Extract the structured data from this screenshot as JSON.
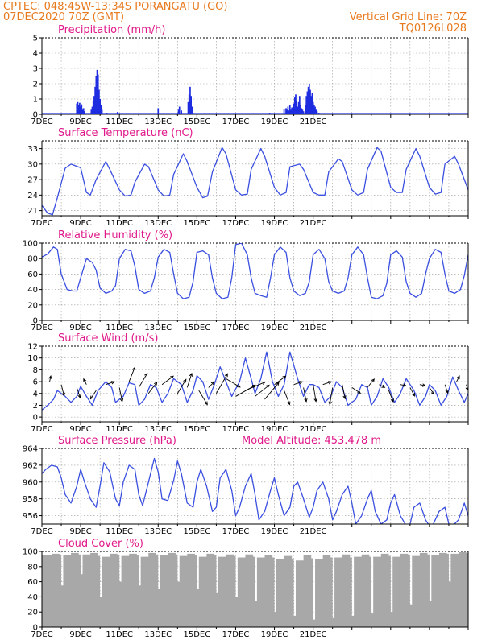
{
  "header": {
    "line1": "CPTEC:   048:45W-13:34S   PORANGATU (GO)",
    "line2": "07DEC2020 70Z (GMT)",
    "grid_note": "Vertical Grid Line: 70Z",
    "code": "TQ0126L028"
  },
  "colors": {
    "header": "#e87a1e",
    "title": "#e0198a",
    "line": "#3a4fe0",
    "bar": "#1f2de0",
    "cloud": "#a8a8a8",
    "grid": "#9a9a9a"
  },
  "x_tick_labels": [
    "7DEC",
    "9DEC",
    "11DEC",
    "13DEC",
    "15DEC",
    "17DEC",
    "19DEC",
    "21DEC"
  ],
  "chart_data": [
    {
      "type": "bar",
      "title": "Precipitation (mm/h)",
      "ylim": [
        0,
        5
      ],
      "yticks": [
        0,
        1,
        2,
        3,
        4,
        5
      ],
      "x": [
        1.8,
        1.85,
        1.9,
        1.95,
        2.0,
        2.05,
        2.1,
        2.15,
        2.2,
        2.55,
        2.6,
        2.65,
        2.7,
        2.75,
        2.8,
        2.85,
        2.9,
        2.95,
        3.0,
        3.05,
        3.1,
        3.35,
        3.9,
        6.0,
        7.05,
        7.1,
        7.2,
        7.55,
        7.6,
        7.65,
        7.7,
        7.75,
        11.75,
        12.5,
        12.6,
        12.65,
        12.7,
        12.75,
        12.8,
        12.85,
        12.9,
        12.95,
        13.0,
        13.05,
        13.1,
        13.15,
        13.2,
        13.25,
        13.3,
        13.35,
        13.4,
        13.45,
        13.5,
        13.6,
        13.65,
        13.7,
        13.75,
        13.8,
        13.85,
        13.9,
        13.95,
        14.0,
        14.05,
        14.1,
        14.15,
        14.2,
        14.3
      ],
      "values": [
        0.7,
        0.8,
        0.6,
        0.75,
        0.5,
        0.65,
        0.3,
        0.4,
        0.2,
        0.3,
        0.5,
        0.9,
        1.2,
        1.8,
        2.5,
        2.9,
        2.6,
        1.6,
        1.0,
        0.6,
        0.3,
        0.1,
        0.15,
        0.4,
        0.3,
        0.5,
        0.25,
        0.8,
        1.3,
        1.8,
        1.2,
        0.5,
        0.1,
        0.35,
        0.4,
        0.3,
        0.5,
        0.25,
        0.6,
        0.3,
        0.45,
        0.2,
        0.7,
        1.1,
        1.3,
        0.9,
        0.5,
        0.8,
        1.2,
        0.6,
        0.4,
        0.3,
        0.2,
        0.6,
        1.2,
        1.5,
        1.8,
        2.0,
        1.6,
        1.2,
        1.4,
        0.8,
        0.6,
        0.5,
        0.3,
        0.2,
        0.1
      ]
    },
    {
      "type": "line",
      "title": "Surface Temperature (nC)",
      "ylim": [
        20,
        34.5
      ],
      "yticks": [
        21,
        24,
        27,
        30,
        33
      ],
      "x": [
        0,
        0.3,
        0.55,
        0.8,
        1.2,
        1.5,
        2.0,
        2.3,
        2.5,
        2.8,
        3.3,
        3.5,
        4.0,
        4.3,
        4.6,
        4.8,
        5.3,
        5.5,
        6.0,
        6.3,
        6.6,
        6.8,
        7.3,
        7.5,
        8.0,
        8.3,
        8.55,
        8.8,
        9.3,
        9.5,
        10.0,
        10.3,
        10.6,
        10.8,
        11.3,
        11.5,
        12.0,
        12.3,
        12.6,
        12.8,
        13.3,
        13.5,
        14.0,
        14.3,
        14.6,
        14.8,
        15.3,
        15.5,
        16.0,
        16.3,
        16.6,
        16.8,
        17.3,
        17.5,
        18.0,
        18.3,
        18.6,
        18.8,
        19.3,
        19.5,
        20.0,
        20.3,
        20.6,
        20.8,
        21.3,
        21.5,
        22.0
      ],
      "values": [
        22.0,
        20.5,
        20.2,
        23.5,
        29.2,
        30.0,
        29.3,
        24.5,
        24.0,
        27.0,
        30.5,
        29.0,
        25.0,
        23.8,
        24.0,
        26.5,
        30.0,
        29.5,
        25.0,
        23.8,
        24.0,
        28.0,
        32.0,
        30.5,
        25.5,
        23.5,
        23.8,
        28.5,
        33.2,
        32.0,
        25.0,
        24.0,
        24.2,
        29.0,
        33.0,
        31.5,
        25.5,
        24.0,
        24.5,
        29.5,
        30.0,
        29.0,
        24.5,
        24.0,
        24.0,
        28.5,
        31.0,
        30.5,
        25.0,
        24.0,
        24.5,
        29.0,
        33.2,
        32.5,
        25.5,
        24.5,
        24.5,
        29.0,
        33.0,
        31.5,
        25.5,
        24.2,
        24.5,
        30.0,
        31.5,
        30.0,
        25.0
      ]
    },
    {
      "type": "line",
      "title": "Relative Humidity (%)",
      "ylim": [
        0,
        100
      ],
      "yticks": [
        0,
        20,
        40,
        60,
        80,
        100
      ],
      "x": [
        0,
        0.3,
        0.6,
        0.8,
        1.0,
        1.3,
        1.6,
        1.8,
        2.0,
        2.3,
        2.6,
        2.8,
        3.0,
        3.3,
        3.6,
        3.8,
        4.0,
        4.3,
        4.6,
        4.8,
        5.0,
        5.3,
        5.6,
        5.8,
        6.0,
        6.3,
        6.6,
        6.8,
        7.0,
        7.3,
        7.6,
        7.8,
        8.0,
        8.3,
        8.6,
        8.8,
        9.0,
        9.3,
        9.6,
        9.8,
        10.0,
        10.3,
        10.6,
        10.8,
        11.0,
        11.3,
        11.6,
        11.8,
        12.0,
        12.3,
        12.6,
        12.8,
        13.0,
        13.3,
        13.6,
        13.8,
        14.0,
        14.3,
        14.6,
        14.8,
        15.0,
        15.3,
        15.6,
        15.8,
        16.0,
        16.3,
        16.6,
        16.8,
        17.0,
        17.3,
        17.6,
        17.8,
        18.0,
        18.3,
        18.6,
        18.8,
        19.0,
        19.3,
        19.6,
        19.8,
        20.0,
        20.3,
        20.6,
        20.8,
        21.0,
        21.3,
        21.6,
        21.8,
        22.0
      ],
      "values": [
        82,
        86,
        95,
        92,
        60,
        40,
        38,
        38,
        55,
        80,
        75,
        65,
        42,
        35,
        38,
        45,
        80,
        92,
        90,
        70,
        40,
        35,
        38,
        55,
        82,
        92,
        88,
        60,
        35,
        28,
        30,
        50,
        88,
        90,
        85,
        55,
        35,
        28,
        30,
        55,
        98,
        100,
        85,
        55,
        35,
        32,
        30,
        55,
        85,
        95,
        88,
        55,
        38,
        32,
        35,
        50,
        85,
        92,
        80,
        50,
        38,
        35,
        38,
        55,
        85,
        95,
        85,
        55,
        30,
        28,
        32,
        48,
        85,
        90,
        82,
        50,
        35,
        30,
        35,
        60,
        80,
        92,
        88,
        60,
        38,
        35,
        40,
        58,
        85
      ]
    },
    {
      "type": "line",
      "title": "Surface Wind (m/s)",
      "ylim": [
        -0.8,
        12
      ],
      "yticks": [
        0,
        2,
        4,
        6,
        8,
        10,
        12
      ],
      "x": [
        0,
        0.3,
        0.6,
        0.8,
        1.2,
        1.5,
        1.8,
        2.0,
        2.3,
        2.6,
        2.9,
        3.3,
        3.6,
        3.8,
        4.2,
        4.5,
        4.8,
        5.0,
        5.3,
        5.6,
        5.9,
        6.2,
        6.5,
        6.8,
        7.2,
        7.5,
        7.8,
        8.0,
        8.3,
        8.6,
        8.9,
        9.2,
        9.5,
        9.8,
        10.2,
        10.5,
        10.8,
        11.0,
        11.3,
        11.6,
        11.9,
        12.2,
        12.5,
        12.8,
        13.2,
        13.5,
        13.8,
        14.0,
        14.3,
        14.6,
        14.9,
        15.2,
        15.5,
        15.8,
        16.2,
        16.5,
        16.8,
        17.0,
        17.3,
        17.6,
        17.9,
        18.2,
        18.5,
        18.8,
        19.2,
        19.5,
        19.8,
        20.0,
        20.3,
        20.6,
        20.9,
        21.2,
        21.5,
        21.8,
        22.0
      ],
      "values": [
        1.2,
        2.0,
        3.0,
        4.5,
        3.5,
        2.5,
        3.5,
        5.2,
        3.5,
        2.0,
        4.5,
        6.0,
        5.0,
        2.5,
        3.5,
        5.8,
        5.5,
        2.0,
        3.0,
        5.5,
        5.0,
        2.5,
        4.0,
        6.5,
        5.5,
        2.5,
        4.5,
        7.0,
        6.0,
        3.0,
        5.5,
        8.5,
        6.0,
        3.5,
        6.0,
        10.0,
        6.5,
        4.0,
        6.5,
        11.0,
        6.0,
        3.5,
        5.5,
        11.0,
        6.5,
        3.5,
        5.5,
        5.5,
        5.0,
        2.5,
        3.5,
        6.0,
        5.0,
        2.0,
        3.0,
        5.5,
        5.0,
        2.0,
        3.5,
        6.5,
        5.0,
        2.5,
        4.0,
        6.5,
        4.5,
        2.0,
        3.5,
        5.5,
        4.5,
        2.0,
        3.5,
        6.8,
        4.5,
        2.5,
        4.0
      ],
      "arrows": [
        {
          "x": 0.4,
          "y": 6.0,
          "u": 0.2,
          "v": 1.0
        },
        {
          "x": 1.0,
          "y": 5.5,
          "u": 0.5,
          "v": -2.0
        },
        {
          "x": 1.8,
          "y": 5.0,
          "u": 0.6,
          "v": -1.8
        },
        {
          "x": 2.3,
          "y": 5.5,
          "u": -0.5,
          "v": 1.0
        },
        {
          "x": 2.8,
          "y": 4.5,
          "u": -1.0,
          "v": -1.5
        },
        {
          "x": 3.3,
          "y": 5.5,
          "u": 1.5,
          "v": 0.5
        },
        {
          "x": 4.0,
          "y": 5.0,
          "u": 0.5,
          "v": -2.5
        },
        {
          "x": 4.5,
          "y": 6.0,
          "u": 1.0,
          "v": 2.5
        },
        {
          "x": 5.0,
          "y": 5.0,
          "u": 1.5,
          "v": 2.5
        },
        {
          "x": 5.5,
          "y": 4.0,
          "u": 1.5,
          "v": 2.0
        },
        {
          "x": 6.2,
          "y": 5.5,
          "u": 2.0,
          "v": 1.5
        },
        {
          "x": 7.0,
          "y": 4.0,
          "u": 1.5,
          "v": 2.5
        },
        {
          "x": 7.5,
          "y": 5.0,
          "u": 0.8,
          "v": 2.5
        },
        {
          "x": 8.1,
          "y": 4.5,
          "u": 1.5,
          "v": -2.5
        },
        {
          "x": 8.6,
          "y": 5.0,
          "u": 1.0,
          "v": 1.0
        },
        {
          "x": 9.0,
          "y": 4.0,
          "u": 2.0,
          "v": 3.5
        },
        {
          "x": 9.5,
          "y": 6.5,
          "u": 2.5,
          "v": -1.5
        },
        {
          "x": 10.0,
          "y": 3.5,
          "u": 3.5,
          "v": 2.0
        },
        {
          "x": 10.5,
          "y": 4.5,
          "u": 3.5,
          "v": 1.5
        },
        {
          "x": 11.0,
          "y": 3.5,
          "u": 2.5,
          "v": 2.0
        },
        {
          "x": 11.5,
          "y": 3.0,
          "u": 2.5,
          "v": 3.0
        },
        {
          "x": 12.0,
          "y": 5.5,
          "u": 2.0,
          "v": 1.5
        },
        {
          "x": 12.5,
          "y": 4.5,
          "u": 1.0,
          "v": -2.5
        },
        {
          "x": 13.0,
          "y": 5.5,
          "u": 1.5,
          "v": 0.5
        },
        {
          "x": 13.5,
          "y": 5.0,
          "u": 0.5,
          "v": -2.5
        },
        {
          "x": 14.0,
          "y": 5.5,
          "u": 0.5,
          "v": -3.0
        },
        {
          "x": 14.5,
          "y": 5.5,
          "u": 1.5,
          "v": 0.5
        },
        {
          "x": 15.0,
          "y": 5.0,
          "u": -0.5,
          "v": -3.0
        },
        {
          "x": 15.5,
          "y": 5.5,
          "u": 0.5,
          "v": -2.5
        },
        {
          "x": 16.0,
          "y": 5.0,
          "u": 1.5,
          "v": -1.0
        },
        {
          "x": 16.8,
          "y": 5.0,
          "u": 1.2,
          "v": 1.5
        },
        {
          "x": 17.4,
          "y": 5.5,
          "u": 1.0,
          "v": -0.5
        },
        {
          "x": 17.9,
          "y": 4.5,
          "u": 0.8,
          "v": -2.0
        },
        {
          "x": 18.5,
          "y": 5.5,
          "u": 1.0,
          "v": -0.2
        },
        {
          "x": 19.0,
          "y": 5.0,
          "u": 0.8,
          "v": -1.5
        },
        {
          "x": 19.5,
          "y": 5.5,
          "u": 1.0,
          "v": -0.2
        },
        {
          "x": 20.0,
          "y": 5.0,
          "u": 0.8,
          "v": -1.2
        },
        {
          "x": 20.8,
          "y": 5.5,
          "u": 0.5,
          "v": -1.5
        },
        {
          "x": 21.4,
          "y": 6.0,
          "u": 0.5,
          "v": 1.0
        },
        {
          "x": 21.9,
          "y": 5.5,
          "u": 0.3,
          "v": -1.0
        }
      ]
    },
    {
      "type": "line",
      "title": "Surface Pressure (hPa)",
      "annotation": "Model Altitude: 453.478 m",
      "ylim": [
        955,
        964
      ],
      "yticks": [
        956,
        958,
        960,
        962,
        964
      ],
      "x": [
        0,
        0.2,
        0.5,
        0.8,
        1.0,
        1.2,
        1.5,
        1.8,
        2.0,
        2.2,
        2.5,
        2.8,
        3.0,
        3.2,
        3.5,
        3.8,
        4.0,
        4.2,
        4.5,
        4.8,
        5.0,
        5.2,
        5.5,
        5.8,
        6.0,
        6.2,
        6.5,
        6.8,
        7.0,
        7.2,
        7.5,
        7.8,
        8.0,
        8.2,
        8.5,
        8.8,
        9.0,
        9.2,
        9.5,
        9.8,
        10.0,
        10.2,
        10.5,
        10.8,
        11.0,
        11.2,
        11.5,
        11.8,
        12.0,
        12.2,
        12.5,
        12.8,
        13.0,
        13.2,
        13.5,
        13.8,
        14.0,
        14.2,
        14.5,
        14.8,
        15.0,
        15.2,
        15.5,
        15.8,
        16.0,
        16.2,
        16.5,
        16.8,
        17.0,
        17.2,
        17.5,
        17.8,
        18.0,
        18.2,
        18.5,
        18.8,
        19.0,
        19.2,
        19.5,
        19.8,
        20.0,
        20.2,
        20.5,
        20.8,
        21.0,
        21.2,
        21.5,
        21.8,
        22.0
      ],
      "values": [
        961.0,
        961.5,
        962.0,
        961.8,
        960.5,
        958.5,
        957.5,
        959.5,
        961.5,
        960.0,
        958.0,
        957.0,
        959.5,
        962.3,
        961.2,
        958.0,
        957.2,
        960.0,
        962.0,
        961.5,
        958.5,
        957.2,
        960.0,
        962.8,
        961.2,
        958.0,
        957.8,
        960.2,
        962.5,
        961.0,
        957.5,
        957.0,
        960.0,
        961.5,
        959.5,
        956.5,
        957.0,
        960.5,
        961.5,
        959.0,
        956.0,
        957.0,
        959.5,
        961.0,
        958.5,
        955.5,
        956.5,
        959.0,
        960.5,
        958.5,
        956.0,
        957.0,
        959.5,
        960.0,
        958.0,
        955.8,
        957.0,
        959.0,
        960.0,
        958.0,
        955.5,
        956.5,
        958.5,
        959.5,
        957.5,
        955.0,
        956.0,
        958.0,
        959.0,
        956.5,
        955.0,
        955.5,
        957.5,
        958.5,
        956.0,
        954.8,
        955.0,
        957.0,
        957.5,
        955.5,
        954.8,
        955.0,
        956.5,
        957.0,
        955.0,
        954.8,
        955.5,
        957.5,
        956.0
      ]
    },
    {
      "type": "area",
      "title": "Cloud Cover (%)",
      "ylim": [
        0,
        100
      ],
      "yticks": [
        0,
        20,
        40,
        60,
        80,
        100
      ],
      "x": [
        0,
        0.5,
        0.9,
        1.0,
        1.1,
        1.5,
        1.9,
        2.0,
        2.1,
        2.5,
        2.9,
        3.0,
        3.1,
        3.5,
        3.9,
        4.0,
        4.1,
        4.5,
        4.9,
        5.0,
        5.1,
        5.5,
        5.9,
        6.0,
        6.1,
        6.5,
        6.9,
        7.0,
        7.1,
        7.5,
        7.9,
        8.0,
        8.1,
        8.5,
        8.9,
        9.0,
        9.1,
        9.5,
        9.9,
        10.0,
        10.1,
        10.5,
        10.9,
        11.0,
        11.1,
        11.5,
        11.9,
        12.0,
        12.1,
        12.5,
        12.9,
        13.0,
        13.1,
        13.5,
        13.9,
        14.0,
        14.1,
        14.5,
        14.9,
        15.0,
        15.1,
        15.5,
        15.9,
        16.0,
        16.1,
        16.5,
        16.9,
        17.0,
        17.1,
        17.5,
        17.9,
        18.0,
        18.1,
        18.5,
        18.9,
        19.0,
        19.1,
        19.5,
        19.9,
        20.0,
        20.1,
        20.5,
        20.9,
        21.0,
        21.1,
        21.5,
        21.9,
        22.0
      ],
      "values": [
        95,
        97,
        96,
        55,
        95,
        98,
        96,
        70,
        96,
        98,
        94,
        40,
        93,
        97,
        95,
        60,
        94,
        97,
        95,
        55,
        93,
        98,
        96,
        50,
        95,
        98,
        96,
        60,
        94,
        97,
        95,
        50,
        93,
        97,
        95,
        45,
        93,
        96,
        94,
        40,
        92,
        96,
        93,
        35,
        92,
        95,
        92,
        20,
        90,
        94,
        90,
        15,
        88,
        95,
        91,
        10,
        90,
        95,
        92,
        12,
        92,
        96,
        92,
        15,
        93,
        96,
        93,
        18,
        93,
        97,
        94,
        20,
        93,
        97,
        95,
        30,
        94,
        98,
        96,
        35,
        95,
        98,
        97,
        60,
        97,
        99,
        98,
        98
      ]
    }
  ]
}
